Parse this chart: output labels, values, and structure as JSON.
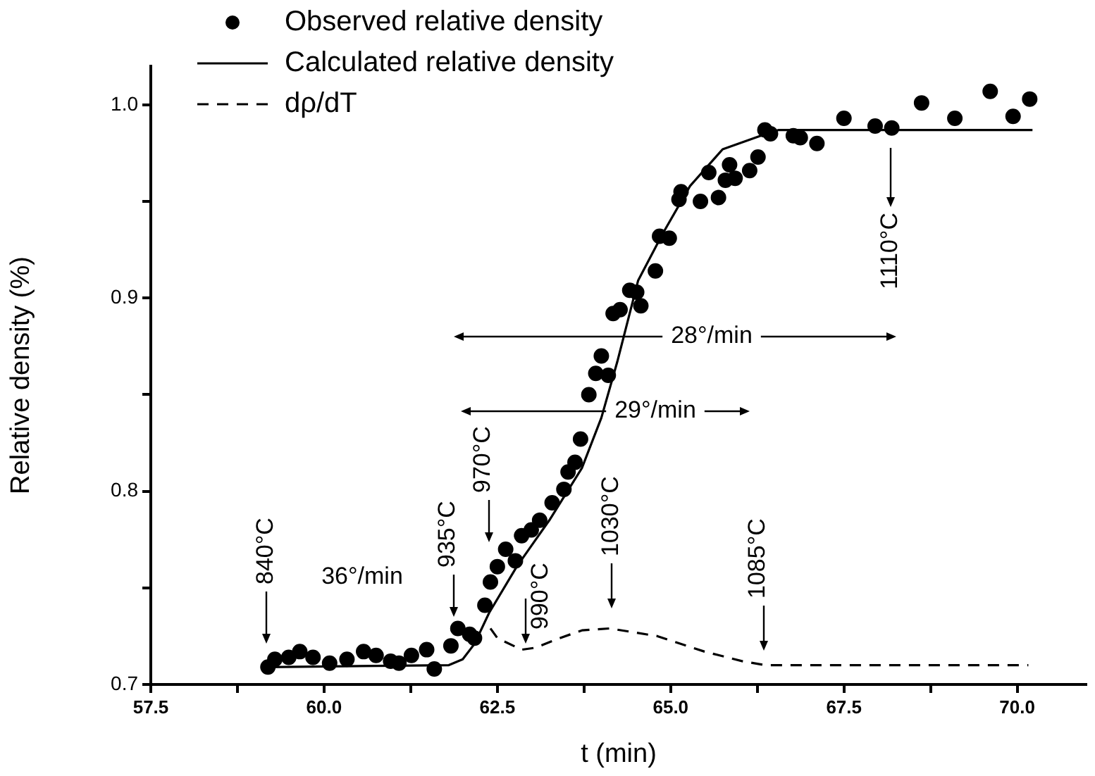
{
  "chart_data": {
    "type": "line",
    "xlabel": "t (min)",
    "ylabel": "Relative density (%)",
    "xlim": [
      57.5,
      71.0
    ],
    "ylim": [
      0.7,
      1.02
    ],
    "xticks": [
      57.5,
      {
        "value": 58.75,
        "label": null
      },
      {
        "value": 60,
        "label": "60.0"
      },
      {
        "value": 61.25,
        "label": null
      },
      62.5,
      {
        "value": 63.75,
        "label": null
      },
      {
        "value": 65,
        "label": "65.0"
      },
      {
        "value": 66.25,
        "label": null
      },
      67.5,
      {
        "value": 68.75,
        "label": null
      },
      {
        "value": 70,
        "label": "70.0"
      }
    ],
    "yticks": [
      0.7,
      {
        "value": 0.75,
        "label": null
      },
      0.8,
      {
        "value": 0.85,
        "label": null
      },
      0.9,
      {
        "value": 0.95,
        "label": null
      },
      {
        "value": 1,
        "label": "1.0"
      }
    ],
    "grid": false,
    "legend": "top left",
    "series": [
      {
        "name": "Observed relative density",
        "type": "scatter",
        "marker": "circle",
        "color": "#000000",
        "x": [
          59.19,
          59.29,
          59.49,
          59.65,
          59.84,
          60.08,
          60.33,
          60.57,
          60.75,
          60.96,
          61.08,
          61.26,
          61.48,
          61.59,
          61.83,
          61.93,
          62.1,
          62.17,
          62.32,
          62.4,
          62.5,
          62.62,
          62.76,
          62.85,
          62.99,
          63.11,
          63.29,
          63.46,
          63.52,
          63.62,
          63.7,
          63.82,
          63.92,
          64.0,
          64.1,
          64.17,
          64.27,
          64.41,
          64.51,
          64.57,
          64.78,
          64.84,
          64.98,
          65.15,
          65.12,
          65.43,
          65.69,
          65.55,
          65.79,
          65.85,
          65.93,
          66.14,
          66.26,
          66.36,
          66.44,
          66.77,
          66.87,
          67.11,
          67.5,
          67.95,
          68.19,
          68.62,
          69.1,
          69.61,
          69.94,
          70.18
        ],
        "values": [
          0.709,
          0.713,
          0.714,
          0.717,
          0.714,
          0.711,
          0.713,
          0.717,
          0.715,
          0.712,
          0.711,
          0.715,
          0.718,
          0.708,
          0.72,
          0.729,
          0.726,
          0.724,
          0.741,
          0.753,
          0.761,
          0.77,
          0.764,
          0.777,
          0.78,
          0.785,
          0.794,
          0.801,
          0.81,
          0.815,
          0.827,
          0.85,
          0.861,
          0.87,
          0.86,
          0.892,
          0.894,
          0.904,
          0.903,
          0.896,
          0.914,
          0.932,
          0.931,
          0.955,
          0.951,
          0.95,
          0.952,
          0.965,
          0.961,
          0.969,
          0.962,
          0.966,
          0.973,
          0.987,
          0.985,
          0.984,
          0.983,
          0.98,
          0.993,
          0.989,
          0.988,
          1.001,
          0.993,
          1.007,
          0.994,
          1.003
        ]
      },
      {
        "name": "Calculated relative density",
        "marker": "none",
        "line_style": "solid",
        "color": "#000000",
        "x": [
          59.2,
          61.8,
          62.0,
          62.17,
          62.38,
          62.78,
          63.25,
          63.72,
          64.0,
          64.23,
          64.53,
          64.88,
          65.28,
          65.75,
          66.3,
          66.56,
          70.22
        ],
        "values": [
          0.709,
          0.71,
          0.713,
          0.721,
          0.737,
          0.761,
          0.785,
          0.812,
          0.838,
          0.867,
          0.909,
          0.933,
          0.958,
          0.977,
          0.984,
          0.987,
          0.987
        ]
      },
      {
        "name": "dρ/dT",
        "type": "line",
        "marker": "none",
        "line_style": "dashed",
        "color": "#000000",
        "x": [
          62.4,
          62.5,
          62.85,
          63.05,
          63.4,
          63.72,
          64.12,
          64.81,
          65.49,
          66.04,
          66.36,
          70.16
        ],
        "values": [
          0.729,
          0.724,
          0.718,
          0.719,
          0.724,
          0.728,
          0.729,
          0.725,
          0.717,
          0.712,
          0.71,
          0.71
        ]
      }
    ],
    "annotations": [
      "840°C",
      "36°/min",
      "935°C",
      "970°C",
      "990°C",
      "1030°C",
      "1085°C",
      "29°/min",
      "28°/min",
      "1110°C"
    ]
  }
}
